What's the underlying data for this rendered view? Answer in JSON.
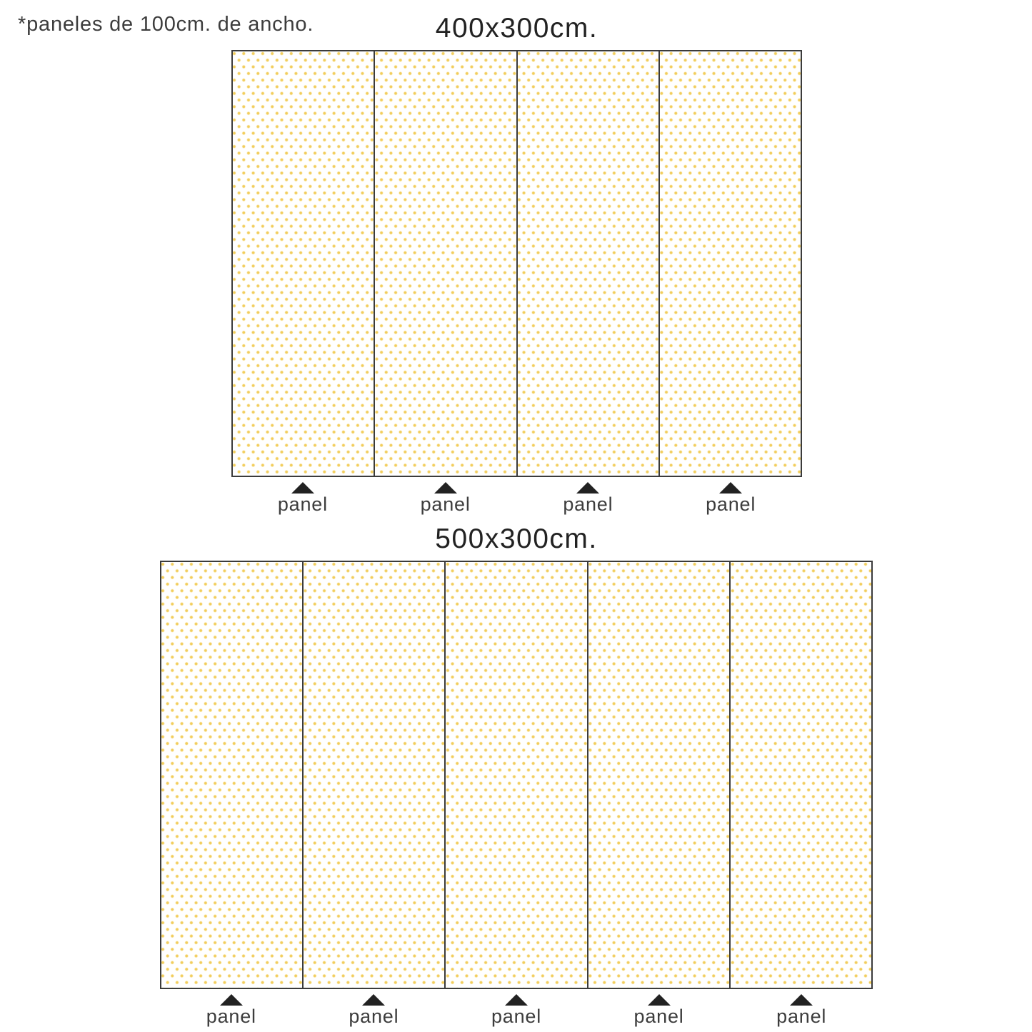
{
  "note": "*paneles de 100cm. de ancho.",
  "colors": {
    "dot": "#f2cd5c",
    "line": "#3b3b3b",
    "triangle": "#222222",
    "text": "#3d3d3d"
  },
  "diagrams": [
    {
      "title": "400x300cm.",
      "panel_count": 4,
      "panel_label": "panel"
    },
    {
      "title": "500x300cm.",
      "panel_count": 5,
      "panel_label": "panel"
    }
  ]
}
